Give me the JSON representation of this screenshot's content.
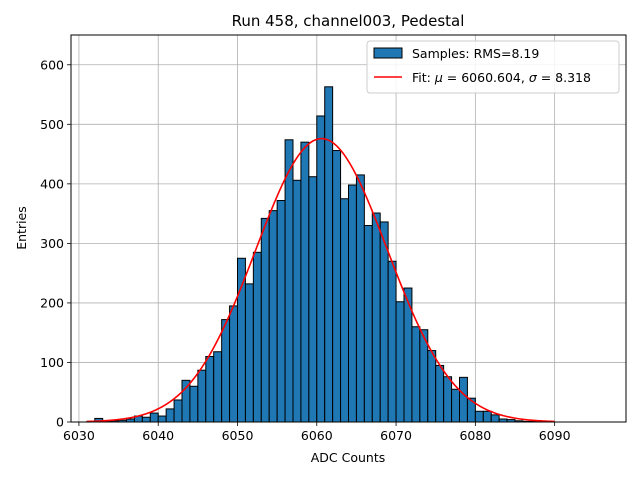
{
  "chart_data": {
    "type": "bar",
    "title": "Run 458, channel003, Pedestal",
    "xlabel": "ADC Counts",
    "ylabel": "Entries",
    "xlim": [
      6029,
      6099
    ],
    "ylim": [
      0,
      650
    ],
    "xticks": [
      6030,
      6040,
      6050,
      6060,
      6070,
      6080,
      6090
    ],
    "yticks": [
      0,
      100,
      200,
      300,
      400,
      500,
      600
    ],
    "grid": true,
    "legend_position": "top-right",
    "colors": {
      "bars": "#1f77b4",
      "fit": "#ff0000",
      "edge": "#000000",
      "grid": "#b0b0b0"
    },
    "series": [
      {
        "name": "Samples: RMS=8.19",
        "kind": "histogram",
        "bin_width": 1,
        "bin_left_edges": [
          6031,
          6032,
          6033,
          6034,
          6035,
          6036,
          6037,
          6038,
          6039,
          6040,
          6041,
          6042,
          6043,
          6044,
          6045,
          6046,
          6047,
          6048,
          6049,
          6050,
          6051,
          6052,
          6053,
          6054,
          6055,
          6056,
          6057,
          6058,
          6059,
          6060,
          6061,
          6062,
          6063,
          6064,
          6065,
          6066,
          6067,
          6068,
          6069,
          6070,
          6071,
          6072,
          6073,
          6074,
          6075,
          6076,
          6077,
          6078,
          6079,
          6080,
          6081,
          6082,
          6083,
          6084,
          6085,
          6086,
          6087,
          6088,
          6089
        ],
        "counts": [
          1,
          6,
          2,
          2,
          3,
          5,
          10,
          8,
          15,
          10,
          22,
          37,
          70,
          60,
          87,
          110,
          118,
          172,
          195,
          275,
          232,
          285,
          342,
          355,
          372,
          474,
          406,
          470,
          412,
          514,
          563,
          456,
          375,
          398,
          415,
          330,
          351,
          336,
          270,
          202,
          225,
          160,
          155,
          120,
          95,
          76,
          55,
          75,
          40,
          18,
          18,
          12,
          5,
          4,
          2,
          1,
          1,
          0,
          0
        ]
      },
      {
        "name": "Fit: μ = 6060.604, σ = 8.318",
        "kind": "gaussian-fit",
        "mu": 6060.604,
        "sigma": 8.318,
        "amplitude": 476,
        "x_range": [
          6031,
          6090
        ]
      }
    ]
  },
  "legend": {
    "samples_label": "Samples: RMS=8.19",
    "fit_label_prefix": "Fit: ",
    "fit_mu_symbol": "μ",
    "fit_mu_value": " = 6060.604, ",
    "fit_sigma_symbol": "σ",
    "fit_sigma_value": " = 8.318"
  }
}
